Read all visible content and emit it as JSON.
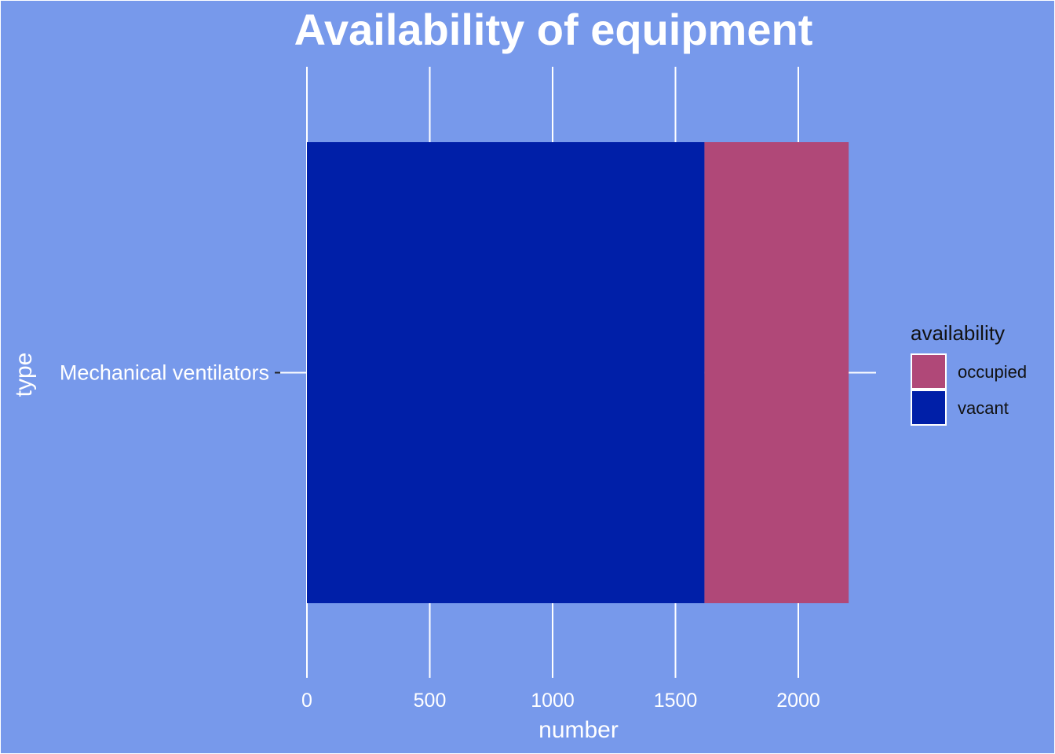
{
  "chart_data": {
    "type": "bar",
    "orientation": "horizontal",
    "stacked": true,
    "title": "Availability of equipment",
    "xlabel": "number",
    "ylabel": "type",
    "categories": [
      "Mechanical ventilators"
    ],
    "series": [
      {
        "name": "vacant",
        "values": [
          1618
        ],
        "color": "#001FA8"
      },
      {
        "name": "occupied",
        "values": [
          587
        ],
        "color": "#B04878"
      }
    ],
    "xlim": [
      0,
      2320
    ],
    "x_ticks": [
      0,
      500,
      1000,
      1500,
      2000
    ],
    "grid": true,
    "legend": {
      "title": "availability",
      "position": "right",
      "entries": [
        {
          "label": "occupied",
          "color": "#B04878"
        },
        {
          "label": "vacant",
          "color": "#001FA8"
        }
      ]
    },
    "colors": {
      "background": "#7799EB",
      "text": "#ffffff",
      "legend_text": "#111111"
    }
  }
}
